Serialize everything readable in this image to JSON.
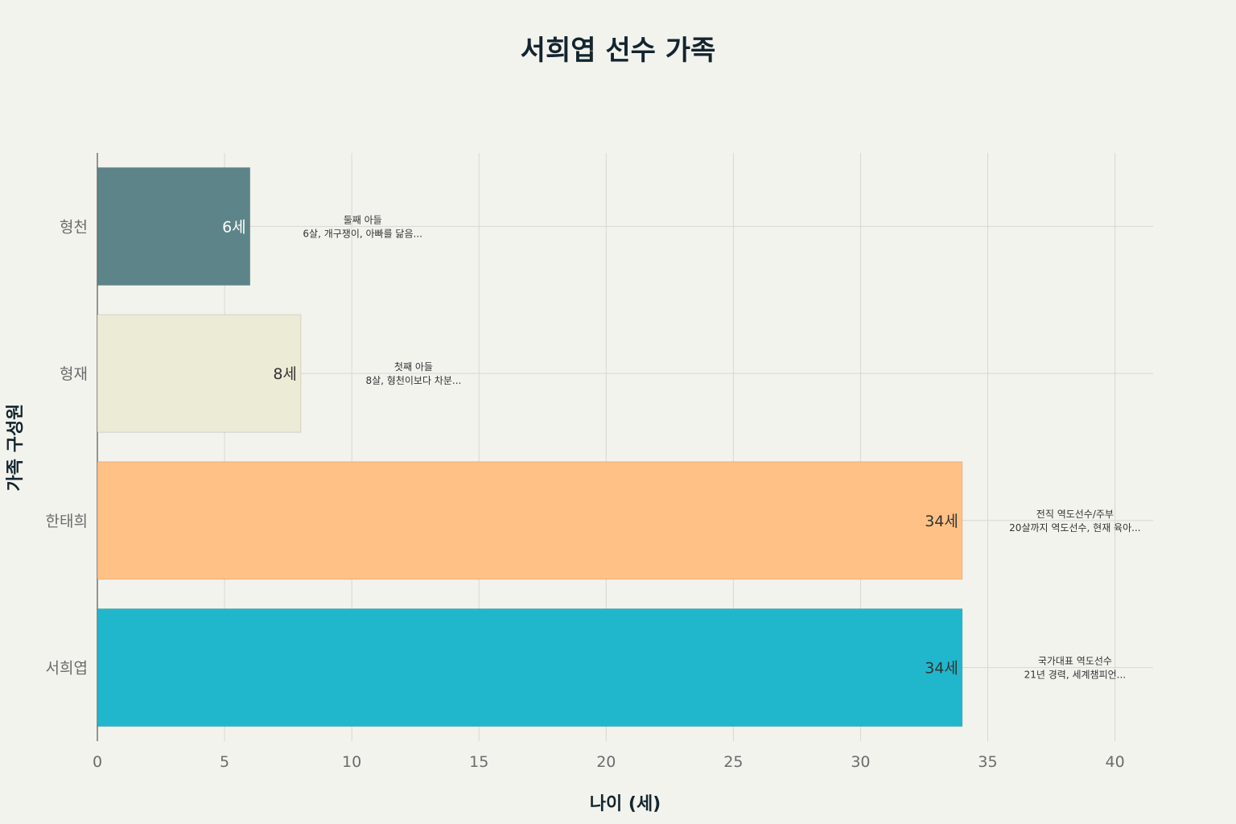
{
  "chart_data": {
    "type": "bar",
    "orientation": "horizontal",
    "title": "서희엽 선수 가족",
    "xlabel": "나이 (세)",
    "ylabel": "가족 구성원",
    "xlim": [
      0,
      41.5
    ],
    "xticks": [
      0,
      5,
      10,
      15,
      20,
      25,
      30,
      35,
      40
    ],
    "grid": true,
    "categories": [
      "형천",
      "형재",
      "한태희",
      "서희엽"
    ],
    "values": [
      6,
      8,
      34,
      34
    ],
    "value_labels": [
      "6세",
      "8세",
      "34세",
      "34세"
    ],
    "colors": [
      "#5d8489",
      "#ecebd6",
      "#ffc186",
      "#20b7cc"
    ],
    "label_colors": [
      "#ffffff",
      "#333333",
      "#333333",
      "#333333"
    ],
    "annotations": [
      {
        "line1": "둘째 아들",
        "line2": "6살, 개구쟁이, 아빠를 닮음..."
      },
      {
        "line1": "첫째 아들",
        "line2": "8살, 형천이보다 차분..."
      },
      {
        "line1": "전직 역도선수/주부",
        "line2": "20살까지 역도선수, 현재 육아..."
      },
      {
        "line1": "국가대표 역도선수",
        "line2": "21년 경력, 세계챔피언..."
      }
    ]
  }
}
